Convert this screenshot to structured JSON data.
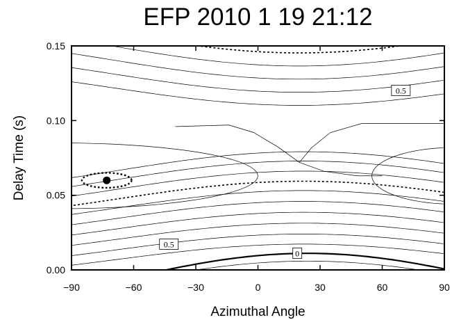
{
  "chart_data": {
    "type": "contour",
    "title": "EFP 2010 1 19 21:12",
    "xlabel": "Azimuthal Angle",
    "ylabel": "Delay Time (s)",
    "xlim": [
      -90,
      90
    ],
    "ylim": [
      0,
      0.15
    ],
    "xticks": [
      -90,
      -60,
      -30,
      0,
      30,
      60,
      90
    ],
    "xtick_labels": [
      "−90",
      "−60",
      "−30",
      "0",
      "30",
      "60",
      "90"
    ],
    "yticks": [
      0,
      0.05,
      0.1,
      0.15
    ],
    "ytick_labels": [
      "0.00",
      "0.05",
      "0.10",
      "0.15"
    ],
    "grid": false,
    "legend": "none",
    "best_fit": {
      "azimuth": -73,
      "delay": 0.06
    },
    "confidence_ellipse": {
      "center_azimuth": -73,
      "center_delay": 0.06,
      "half_width_azimuth": 12,
      "half_height_delay": 0.005
    },
    "contour_labels": [
      {
        "text": "0.5",
        "azimuth": 69,
        "delay": 0.12
      },
      {
        "text": "0.5",
        "azimuth": -43,
        "delay": 0.017
      },
      {
        "text": "0",
        "azimuth": 19,
        "delay": 0.011
      }
    ],
    "contour_lines": {
      "upper": [
        {
          "offset": 0.004,
          "style": "thin"
        },
        {
          "offset": 0.0115,
          "style": "thin"
        },
        {
          "offset": 0.019,
          "style": "thin"
        },
        {
          "offset": 0.0265,
          "style": "thin"
        },
        {
          "offset": 0.034,
          "style": "dashed"
        },
        {
          "offset": 0.041,
          "style": "thin"
        },
        {
          "offset": 0.048,
          "style": "thin"
        },
        {
          "offset": 0.055,
          "style": "thin"
        },
        {
          "offset": 0.062,
          "style": "thin"
        },
        {
          "offset": 0.069,
          "style": "thin"
        }
      ],
      "lower": [
        {
          "offset": 0.007,
          "style": "thin"
        },
        {
          "offset": 0.0135,
          "style": "thin"
        },
        {
          "offset": 0.0205,
          "style": "thin"
        },
        {
          "offset": 0.0275,
          "style": "thin"
        },
        {
          "offset": 0.0345,
          "style": "thin"
        },
        {
          "offset": 0.0415,
          "style": "thin"
        },
        {
          "offset": 0.0475,
          "style": "dashed"
        },
        {
          "offset": 0.054,
          "style": "thin"
        },
        {
          "offset": 0.0605,
          "style": "thin"
        },
        {
          "offset": 0.0665,
          "style": "thin"
        }
      ]
    }
  }
}
